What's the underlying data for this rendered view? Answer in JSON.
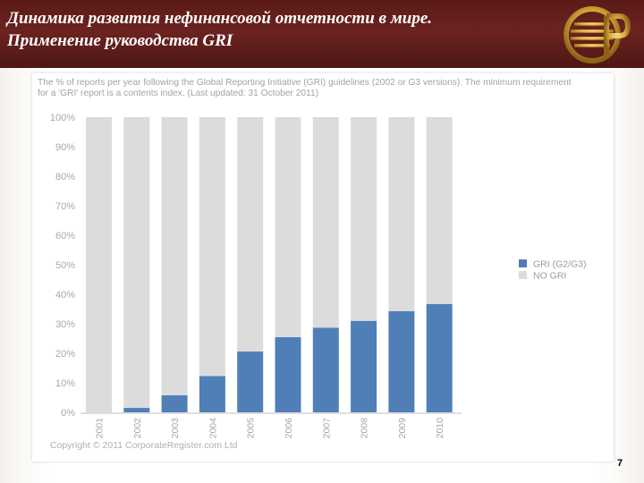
{
  "slide": {
    "title_line1": "Динамика развития нефинансовой отчетности в мире.",
    "title_line2": "Применение руководства GRI",
    "number": "7"
  },
  "colors": {
    "header_bg": "#5c1b18",
    "gri": "#4f7fb6",
    "no_gri": "#dcdcdc",
    "axis_text": "#a8a8a8"
  },
  "chart_data": {
    "type": "bar",
    "stacked": true,
    "description_line1": "The % of reports per year following the Global Reporting Initiative (GRI) guidelines (2002 or G3 versions). The minimum requirement",
    "description_line2": "for a 'GRI' report is a contents index. (Last updated: 31 October 2011)",
    "categories": [
      "2001",
      "2002",
      "2003",
      "2004",
      "2005",
      "2006",
      "2007",
      "2008",
      "2009",
      "2010"
    ],
    "series": [
      {
        "name": "GRI (G2/G3)",
        "values": [
          0,
          1.5,
          5.8,
          12.3,
          20.6,
          25.5,
          28.7,
          31,
          34.3,
          36.7
        ]
      },
      {
        "name": "NO GRI",
        "values": [
          100,
          98.5,
          94.2,
          87.7,
          79.4,
          74.5,
          71.3,
          69,
          65.7,
          63.3
        ]
      }
    ],
    "yticks": [
      "0%",
      "10%",
      "20%",
      "30%",
      "40%",
      "50%",
      "60%",
      "70%",
      "80%",
      "90%",
      "100%"
    ],
    "ylim": [
      0,
      100
    ],
    "legend_position": "right",
    "copyright": "Copyright © 2011 CorporateRegister.com Ltd"
  }
}
